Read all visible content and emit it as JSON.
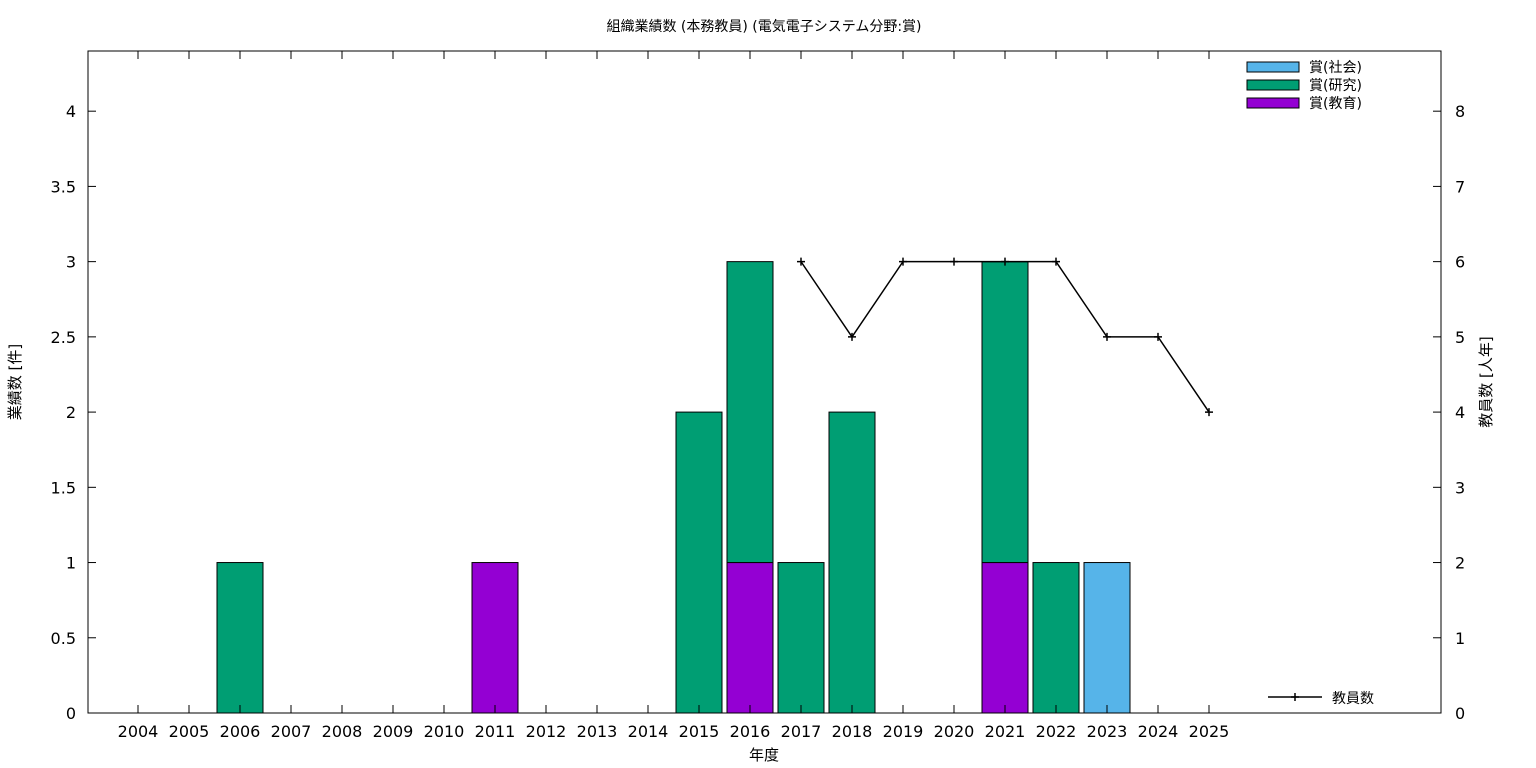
{
  "chart_data": {
    "type": "bar",
    "title": "組織業績数 (本務教員) (電気電子システム分野:賞)",
    "xlabel": "年度",
    "ylabel": "業績数 [件]",
    "y2label": "教員数 [人年]",
    "stacked": true,
    "categories": [
      "2004",
      "2005",
      "2006",
      "2007",
      "2008",
      "2009",
      "2010",
      "2011",
      "2012",
      "2013",
      "2014",
      "2015",
      "2016",
      "2017",
      "2018",
      "2019",
      "2020",
      "2021",
      "2022",
      "2023",
      "2024",
      "2025"
    ],
    "ylim": [
      0,
      4.4
    ],
    "y2lim": [
      0,
      8.8
    ],
    "yticks": [
      "0",
      "0.5",
      "1",
      "1.5",
      "2",
      "2.5",
      "3",
      "3.5",
      "4"
    ],
    "y2ticks": [
      "0",
      "1",
      "2",
      "3",
      "4",
      "5",
      "6",
      "7",
      "8"
    ],
    "series": [
      {
        "name": "賞(教育)",
        "color": "#9400d3",
        "values": [
          0,
          0,
          0,
          0,
          0,
          0,
          0,
          1,
          0,
          0,
          0,
          0,
          1,
          0,
          0,
          0,
          0,
          1,
          0,
          0,
          0,
          0
        ]
      },
      {
        "name": "賞(研究)",
        "color": "#009e73",
        "values": [
          0,
          0,
          1,
          0,
          0,
          0,
          0,
          0,
          0,
          0,
          0,
          2,
          2,
          1,
          2,
          0,
          0,
          2,
          1,
          0,
          0,
          0
        ]
      },
      {
        "name": "賞(社会)",
        "color": "#56b4e9",
        "values": [
          0,
          0,
          0,
          0,
          0,
          0,
          0,
          0,
          0,
          0,
          0,
          0,
          0,
          0,
          0,
          0,
          0,
          0,
          0,
          1,
          0,
          0
        ]
      }
    ],
    "legend_order": [
      "賞(社会)",
      "賞(研究)",
      "賞(教育)"
    ],
    "line_series": {
      "name": "教員数",
      "color": "#000000",
      "axis": "y2",
      "x": [
        "2017",
        "2018",
        "2019",
        "2020",
        "2021",
        "2022",
        "2023",
        "2024",
        "2025"
      ],
      "values": [
        6,
        5,
        6,
        6,
        6,
        6,
        5,
        5,
        4
      ]
    },
    "legend_placement": "top-right",
    "line_legend_placement": "bottom-right",
    "grid": false
  }
}
